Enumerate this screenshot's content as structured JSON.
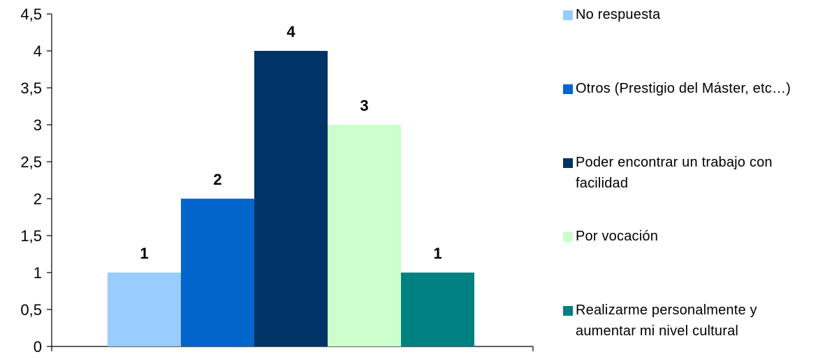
{
  "chart_data": {
    "type": "bar",
    "categories": [
      "No respuesta",
      "Otros (Prestigio del Máster, etc…)",
      "Poder encontrar un trabajo con facilidad",
      "Por vocación",
      "Realizarme personalmente y aumentar mi nivel cultural"
    ],
    "values": [
      1,
      2,
      4,
      3,
      1
    ],
    "data_labels": [
      "1",
      "2",
      "4",
      "3",
      "1"
    ],
    "colors": [
      "#99ccff",
      "#0066cc",
      "#003366",
      "#ccffcc",
      "#008080"
    ],
    "title": "",
    "xlabel": "",
    "ylabel": "",
    "ylim": [
      0,
      4.5
    ],
    "y_ticks": [
      0,
      0.5,
      1,
      1.5,
      2,
      2.5,
      3,
      3.5,
      4,
      4.5
    ],
    "y_tick_labels": [
      "0",
      "0,5",
      "1",
      "1,5",
      "2",
      "2,5",
      "3",
      "3,5",
      "4",
      "4,5"
    ],
    "grid": false,
    "legend": {
      "placement": "right",
      "entries": [
        {
          "lines": [
            "No respuesta"
          ],
          "color": "#99ccff"
        },
        {
          "lines": [
            "Otros (Prestigio del Máster, etc…)"
          ],
          "color": "#0066cc"
        },
        {
          "lines": [
            "Poder encontrar un trabajo con",
            "facilidad"
          ],
          "color": "#003366"
        },
        {
          "lines": [
            "Por vocación"
          ],
          "color": "#ccffcc"
        },
        {
          "lines": [
            "Realizarme personalmente y",
            "aumentar mi nivel cultural"
          ],
          "color": "#008080"
        }
      ]
    }
  }
}
